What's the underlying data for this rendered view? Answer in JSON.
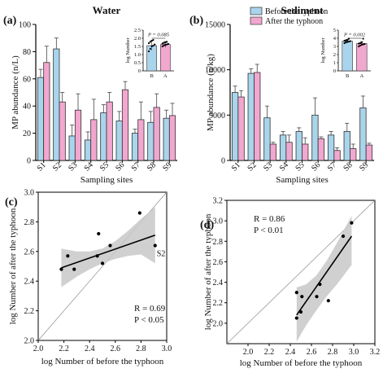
{
  "colors": {
    "before": "#a9d4ec",
    "after": "#f2a7cf",
    "bar_stroke": "#333333",
    "band": "#c8c8c8",
    "fit": "#000000",
    "identity": "#9a9a9a",
    "point": "#000000"
  },
  "legend": {
    "before": "Before the typhoon",
    "after": "After the typhoon"
  },
  "chart_data": [
    {
      "panel": "a",
      "type": "bar",
      "letter": "(a)",
      "title": "Water",
      "xlabel": "Sampling sites",
      "ylabel": "MP abundance (n/L)",
      "ylim": [
        0,
        100
      ],
      "yticks": [
        0,
        20,
        40,
        60,
        80,
        100
      ],
      "categories": [
        "S1",
        "S2",
        "S3",
        "S4",
        "S5",
        "S6",
        "S7",
        "S8",
        "S9"
      ],
      "series": [
        {
          "name": "Before the typhoon",
          "values": [
            61,
            82,
            18,
            15,
            35,
            29,
            20,
            28,
            31
          ],
          "errors": [
            6,
            8,
            8,
            6,
            6,
            7,
            3,
            8,
            6
          ]
        },
        {
          "name": "After the typhoon",
          "values": [
            72,
            43,
            37,
            30,
            43,
            52,
            30,
            39,
            33
          ],
          "errors": [
            12,
            7,
            12,
            15,
            7,
            6,
            13,
            10,
            9
          ]
        }
      ],
      "inset": {
        "type": "bar",
        "ylabel": "log Number",
        "ylim": [
          0,
          2.5
        ],
        "yticks": [
          "0",
          "0.5",
          "1.0",
          "1.5",
          "2.0",
          "2.5"
        ],
        "categories": [
          "B",
          "A"
        ],
        "values": [
          1.55,
          1.62
        ],
        "errors": [
          0.3,
          0.18
        ],
        "points_before": [
          1.2,
          1.35,
          1.5,
          1.55,
          1.62,
          1.7,
          1.78,
          1.85,
          1.9
        ],
        "points_after": [
          1.5,
          1.55,
          1.6,
          1.62,
          1.65,
          1.68,
          1.72,
          1.75,
          1.78
        ],
        "p_text": "P = 0.085"
      }
    },
    {
      "panel": "b",
      "type": "bar",
      "letter": "(b)",
      "title": "Sediment",
      "xlabel": "Sampling sites",
      "ylabel": "MP abundance (n/kg)",
      "ylim": [
        0,
        15000
      ],
      "yticks": [
        0,
        5000,
        10000,
        15000
      ],
      "categories": [
        "S1",
        "S2",
        "S3",
        "S4",
        "S5",
        "S6",
        "S7",
        "S8",
        "S9"
      ],
      "series": [
        {
          "name": "Before the typhoon",
          "values": [
            7500,
            9600,
            4700,
            2800,
            3200,
            5000,
            2800,
            3200,
            5800
          ],
          "errors": [
            700,
            500,
            1300,
            400,
            400,
            1900,
            400,
            900,
            1300
          ]
        },
        {
          "name": "After the typhoon",
          "values": [
            7000,
            9700,
            1800,
            2000,
            1800,
            2400,
            1100,
            1300,
            1700
          ],
          "errors": [
            700,
            900,
            200,
            800,
            700,
            200,
            300,
            500,
            200
          ]
        }
      ],
      "inset": {
        "type": "bar",
        "ylabel": "log Number",
        "ylim": [
          0,
          5
        ],
        "yticks": [
          "0",
          "1",
          "2",
          "3",
          "4",
          "5"
        ],
        "categories": [
          "B",
          "A"
        ],
        "values": [
          3.65,
          3.35
        ],
        "errors": [
          0.2,
          0.25
        ],
        "points_before": [
          3.4,
          3.5,
          3.55,
          3.6,
          3.65,
          3.7,
          3.75,
          3.8,
          3.95
        ],
        "points_after": [
          3.0,
          3.1,
          3.2,
          3.25,
          3.3,
          3.35,
          3.4,
          3.5,
          3.95
        ],
        "p_text": "P = 0.002"
      }
    },
    {
      "panel": "c",
      "type": "scatter",
      "letter": "(c)",
      "xlabel": "log Number of before the typhoon",
      "ylabel": "log Number of after the typhoon",
      "xlim": [
        2.0,
        3.0
      ],
      "ylim": [
        2.0,
        3.0
      ],
      "xticks": [
        "2.0",
        "2.2",
        "2.4",
        "2.6",
        "2.8",
        "3.0"
      ],
      "yticks": [
        "2.0",
        "2.2",
        "2.4",
        "2.6",
        "2.8",
        "3.0"
      ],
      "points": [
        {
          "x": 2.18,
          "y": 2.48
        },
        {
          "x": 2.23,
          "y": 2.57
        },
        {
          "x": 2.28,
          "y": 2.48
        },
        {
          "x": 2.46,
          "y": 2.57
        },
        {
          "x": 2.47,
          "y": 2.72
        },
        {
          "x": 2.5,
          "y": 2.52
        },
        {
          "x": 2.56,
          "y": 2.64
        },
        {
          "x": 2.79,
          "y": 2.86
        },
        {
          "x": 2.91,
          "y": 2.64
        }
      ],
      "point_label": {
        "text": "S2",
        "x": 2.91,
        "y": 2.64
      },
      "fit": {
        "x": [
          2.18,
          2.91
        ],
        "y": [
          2.49,
          2.71
        ]
      },
      "band": {
        "x": [
          2.18,
          2.3,
          2.4,
          2.5,
          2.6,
          2.7,
          2.8,
          2.91
        ],
        "upper": [
          2.62,
          2.6,
          2.6,
          2.62,
          2.67,
          2.74,
          2.82,
          2.9
        ],
        "lower": [
          2.36,
          2.43,
          2.48,
          2.52,
          2.55,
          2.57,
          2.58,
          2.52
        ]
      },
      "stats": {
        "r": "R = 0.69",
        "p": "P < 0.05"
      }
    },
    {
      "panel": "d",
      "type": "scatter",
      "letter": "(d)",
      "xlabel": "log Number of before the typhoon",
      "ylabel": "log Number of after the typhoon",
      "xlim": [
        1.8,
        3.2
      ],
      "ylim": [
        1.8,
        3.2
      ],
      "xticks": [
        "2.0",
        "2.2",
        "2.4",
        "2.6",
        "2.8",
        "3.0",
        "3.2"
      ],
      "yticks": [
        "2.0",
        "2.2",
        "2.4",
        "2.6",
        "2.8",
        "3.0",
        "3.2"
      ],
      "points": [
        {
          "x": 2.46,
          "y": 2.05
        },
        {
          "x": 2.46,
          "y": 2.3
        },
        {
          "x": 2.5,
          "y": 2.11
        },
        {
          "x": 2.51,
          "y": 2.26
        },
        {
          "x": 2.65,
          "y": 2.26
        },
        {
          "x": 2.68,
          "y": 2.38
        },
        {
          "x": 2.76,
          "y": 2.22
        },
        {
          "x": 2.9,
          "y": 2.85
        },
        {
          "x": 2.98,
          "y": 2.98
        }
      ],
      "fit": {
        "x": [
          2.46,
          2.98
        ],
        "y": [
          2.08,
          2.85
        ]
      },
      "band": {
        "x": [
          2.46,
          2.55,
          2.65,
          2.75,
          2.85,
          2.98
        ],
        "upper": [
          2.35,
          2.38,
          2.47,
          2.62,
          2.8,
          3.05
        ],
        "lower": [
          1.82,
          1.98,
          2.13,
          2.27,
          2.39,
          2.57
        ]
      },
      "stats": {
        "r": "R = 0.86",
        "p": "P < 0.01"
      }
    }
  ]
}
